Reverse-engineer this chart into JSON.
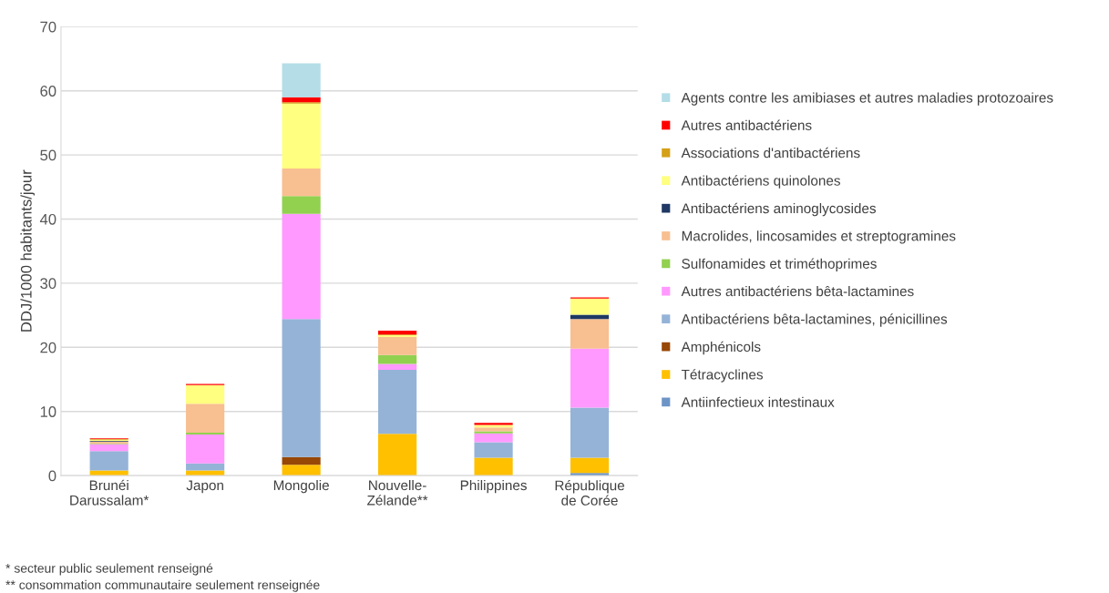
{
  "chart_data": {
    "type": "bar",
    "stacked": true,
    "ylabel": "DDJ/1000 habitants/jour",
    "categories": [
      "Brunéi\nDarussalam*",
      "Japon",
      "Mongolie",
      "Nouvelle-\nZélande**",
      "Philippines",
      "République\nde Corée"
    ],
    "ylim": [
      0,
      70
    ],
    "yticks": [
      0,
      10,
      20,
      30,
      40,
      50,
      60,
      70
    ],
    "grid": "y",
    "legend": "right",
    "series": [
      {
        "name": "Antiinfectieux intestinaux",
        "color": "#6d94c6",
        "values": [
          0,
          0,
          0,
          0,
          0,
          0.4
        ]
      },
      {
        "name": "Tétracyclines",
        "color": "#ffc000",
        "values": [
          0.8,
          0.8,
          1.7,
          6.5,
          2.8,
          2.4
        ]
      },
      {
        "name": "Amphénicols",
        "color": "#974706",
        "values": [
          0,
          0,
          1.2,
          0,
          0,
          0
        ]
      },
      {
        "name": "Antibactériens bêta-lactamines, pénicillines",
        "color": "#95b3d7",
        "values": [
          3.0,
          1.1,
          21.5,
          10.0,
          2.4,
          7.8
        ]
      },
      {
        "name": "Autres antibactériens bêta-lactamines",
        "color": "#ff99ff",
        "values": [
          1.1,
          4.5,
          16.4,
          0.9,
          1.4,
          9.2
        ]
      },
      {
        "name": "Sulfonamides et triméthoprimes",
        "color": "#92d050",
        "values": [
          0.1,
          0.3,
          2.8,
          1.4,
          0.3,
          0
        ]
      },
      {
        "name": "Macrolides, lincosamides et streptogramines",
        "color": "#f8bf90",
        "values": [
          0.3,
          4.5,
          4.3,
          2.8,
          0.6,
          4.6
        ]
      },
      {
        "name": "Antibactériens aminoglycosides",
        "color": "#1f3864",
        "values": [
          0.1,
          0,
          0,
          0,
          0,
          0.7
        ]
      },
      {
        "name": "Antibactériens quinolones",
        "color": "#ffff80",
        "values": [
          0.2,
          2.9,
          10.1,
          0.3,
          0.4,
          2.5
        ]
      },
      {
        "name": "Associations d'antibactériens",
        "color": "#d4a017",
        "values": [
          0.1,
          0,
          0.2,
          0.1,
          0,
          0
        ]
      },
      {
        "name": "Autres antibactériens",
        "color": "#ff0000",
        "values": [
          0.1,
          0.2,
          0.8,
          0.6,
          0.3,
          0.2
        ]
      },
      {
        "name": "Agents contre les amibiases et autres maladies protozoaires",
        "color": "#b4dde7",
        "values": [
          0,
          0,
          5.3,
          0,
          0,
          0
        ]
      }
    ],
    "annotations": [
      "* secteur public seulement renseigné",
      "** consommation communautaire seulement renseignée"
    ]
  }
}
